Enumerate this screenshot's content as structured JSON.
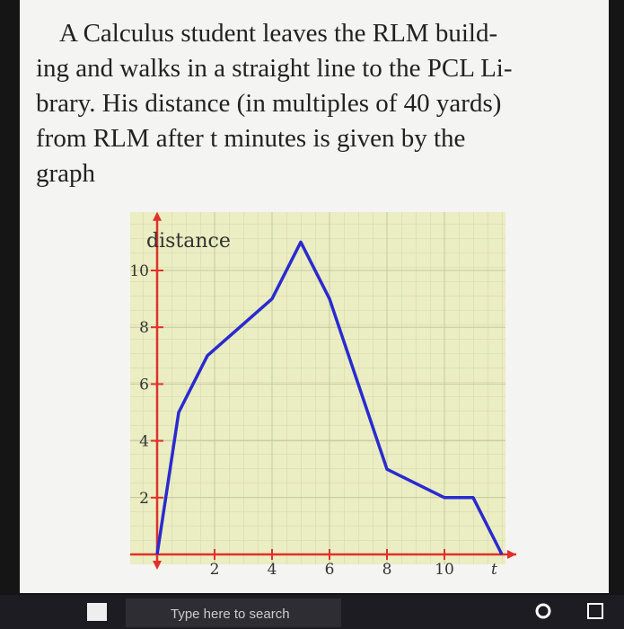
{
  "problem": {
    "lines": [
      "A Calculus student leaves the RLM build-",
      "ing and walks in a straight line to the PCL Li-",
      "brary. His distance (in multiples of 40 yards)",
      "from RLM after t minutes is given by the",
      "graph"
    ]
  },
  "chart_data": {
    "type": "line",
    "y_label": "distance",
    "x_label": "t",
    "x": [
      0,
      0.75,
      1.75,
      4,
      5,
      6,
      8,
      10,
      11,
      12
    ],
    "series": [
      {
        "color": "#2a2ad0",
        "values": [
          0,
          5,
          7,
          9,
          11,
          9,
          3,
          2,
          2,
          0
        ]
      }
    ],
    "xlim": [
      0,
      12.5
    ],
    "ylim": [
      0,
      12
    ],
    "xticks": [
      2,
      4,
      6,
      8,
      10
    ],
    "yticks": [
      2,
      4,
      6,
      8,
      10
    ],
    "axis_color": "#e0302a",
    "grid": true
  },
  "taskbar": {
    "search": "Type here to search"
  }
}
